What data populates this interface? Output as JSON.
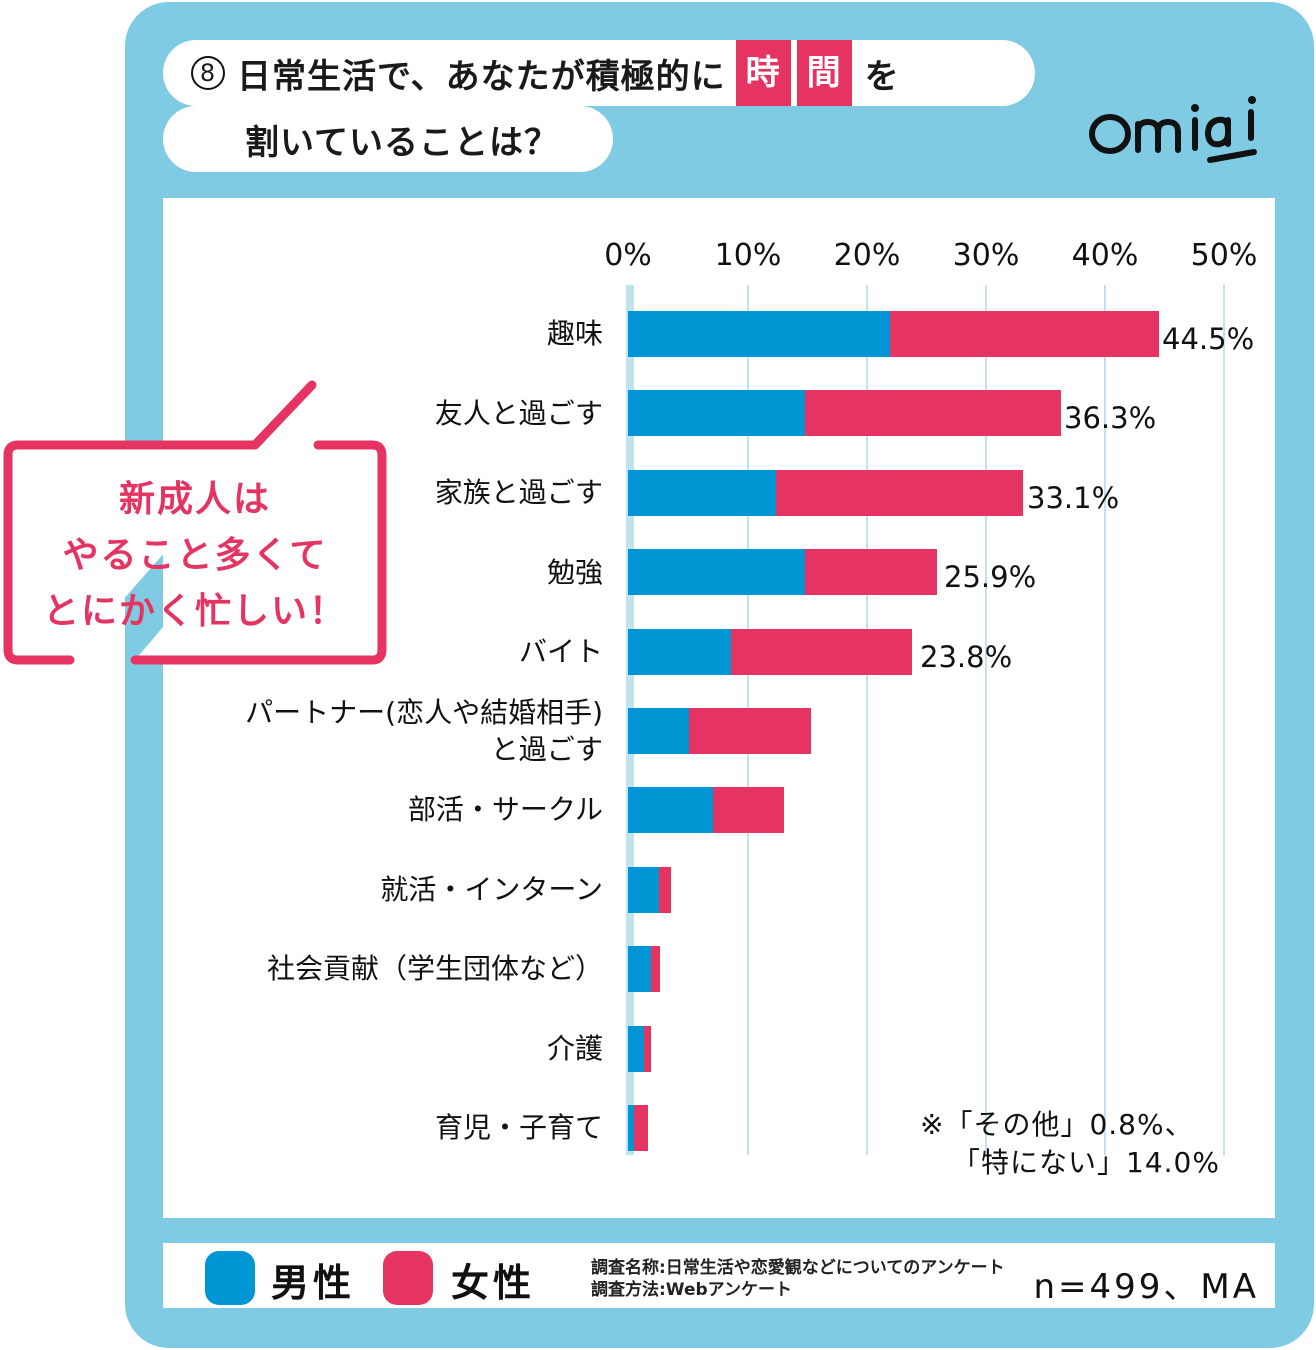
{
  "title": {
    "number": "8",
    "line1_prefix": "日常生活で、あなたが積極的に",
    "highlight1": "時",
    "highlight2": "間",
    "line1_suffix": "を",
    "line2": "割いていることは？"
  },
  "logo": "Omiai",
  "colors": {
    "frame": "#7fcbe3",
    "male": "#0096d6",
    "female": "#e63462",
    "gridline": "#bfe3ef"
  },
  "axis": {
    "ticks": [
      "0%",
      "10%",
      "20%",
      "30%",
      "40%",
      "50%"
    ]
  },
  "bubble": {
    "line1": "新成人は",
    "line2": "やること多くて",
    "line3": "とにかく忙しい！"
  },
  "rows": [
    {
      "label": "趣味",
      "male": 22.0,
      "female": 22.5,
      "total_label": "44.5%"
    },
    {
      "label": "友人と過ごす",
      "male": 14.8,
      "female": 21.5,
      "total_label": "36.3%"
    },
    {
      "label": "家族と過ごす",
      "male": 12.4,
      "female": 20.7,
      "total_label": "33.1%"
    },
    {
      "label": "勉強",
      "male": 14.8,
      "female": 11.1,
      "total_label": "25.9%"
    },
    {
      "label": "バイト",
      "male": 8.6,
      "female": 15.2,
      "total_label": "23.8%"
    },
    {
      "label": "パートナー(恋人や結婚相手)",
      "label2": "と過ごす",
      "male": 5.1,
      "female": 10.2,
      "total_label": ""
    },
    {
      "label": "部活・サークル",
      "male": 7.1,
      "female": 6.0,
      "total_label": ""
    },
    {
      "label": "就活・インターン",
      "male": 2.6,
      "female": 1.0,
      "total_label": ""
    },
    {
      "label": "社会貢献（学生団体など）",
      "male": 1.9,
      "female": 0.8,
      "total_label": ""
    },
    {
      "label": "介護",
      "male": 1.3,
      "female": 0.6,
      "total_label": ""
    },
    {
      "label": "育児・子育て",
      "male": 0.5,
      "female": 1.2,
      "total_label": ""
    }
  ],
  "note": {
    "line1": "※「その他」0.8%、",
    "line2": "「特にない」14.0%"
  },
  "legend": {
    "male": "男性",
    "female": "女性",
    "survey_name": "調査名称:日常生活や恋愛観などについてのアンケート",
    "survey_method": "調査方法:Webアンケート",
    "n": "n=499、MA"
  },
  "chart_data": {
    "type": "bar",
    "orientation": "horizontal",
    "stacked": true,
    "title": "⑧ 日常生活で、あなたが積極的に時間を割いていることは？",
    "categories": [
      "趣味",
      "友人と過ごす",
      "家族と過ごす",
      "勉強",
      "バイト",
      "パートナー(恋人や結婚相手)と過ごす",
      "部活・サークル",
      "就活・インターン",
      "社会貢献（学生団体など）",
      "介護",
      "育児・子育て"
    ],
    "series": [
      {
        "name": "男性",
        "color": "#0096d6",
        "values": [
          22.0,
          14.8,
          12.4,
          14.8,
          8.6,
          5.1,
          7.1,
          2.6,
          1.9,
          1.3,
          0.5
        ]
      },
      {
        "name": "女性",
        "color": "#e63462",
        "values": [
          22.5,
          21.5,
          20.7,
          11.1,
          15.2,
          10.2,
          6.0,
          1.0,
          0.8,
          0.6,
          1.2
        ]
      }
    ],
    "totals": [
      44.5,
      36.3,
      33.1,
      25.9,
      23.8,
      15.3,
      13.1,
      3.6,
      2.7,
      1.9,
      1.7
    ],
    "data_labels": [
      "44.5%",
      "36.3%",
      "33.1%",
      "25.9%",
      "23.8%",
      "",
      "",
      "",
      "",
      "",
      ""
    ],
    "xlabel": "",
    "ylabel": "",
    "xlim": [
      0,
      50
    ],
    "xticks": [
      "0%",
      "10%",
      "20%",
      "30%",
      "40%",
      "50%"
    ],
    "grid": true,
    "legend_position": "bottom",
    "annotations": [
      "※「その他」0.8%、「特にない」14.0%",
      "新成人はやること多くてとにかく忙しい！",
      "n=499、MA"
    ]
  }
}
